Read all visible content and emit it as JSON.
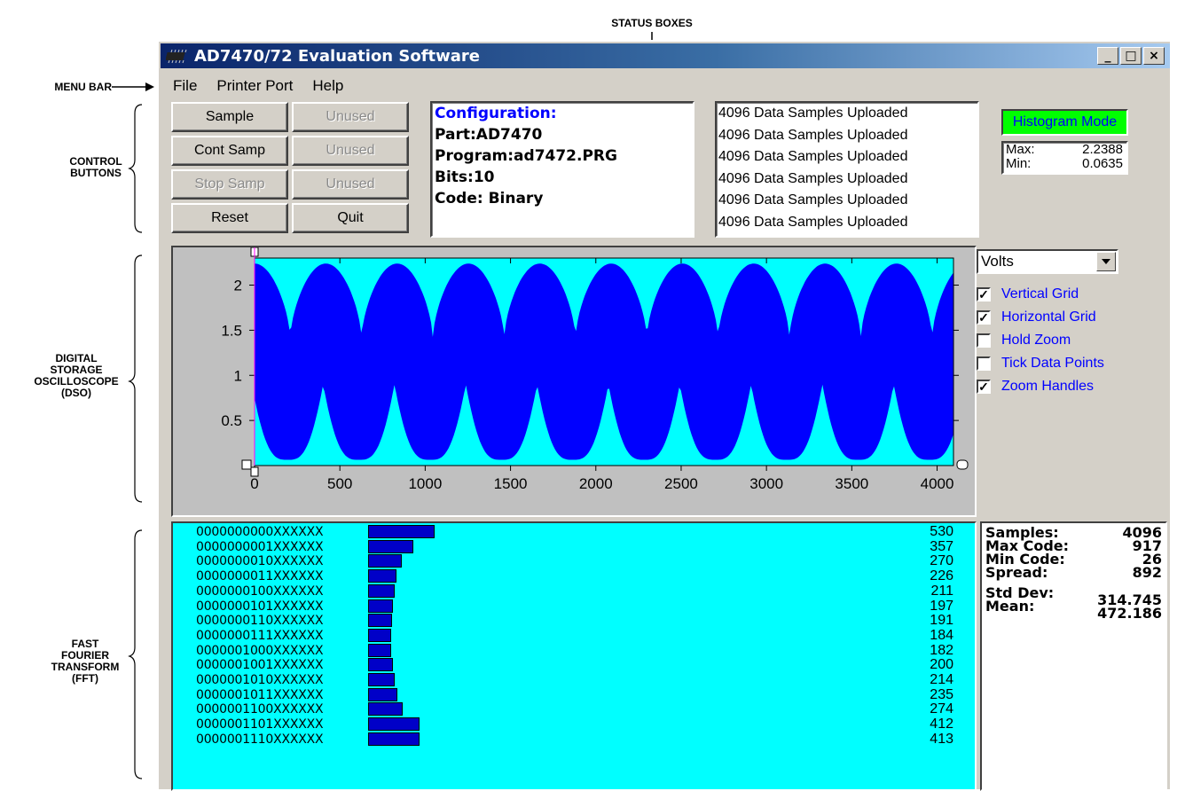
{
  "annotations": {
    "status_boxes": "STATUS BOXES",
    "menu_bar": "MENU BAR",
    "control_buttons": [
      "CONTROL",
      "BUTTONS"
    ],
    "dso": [
      "DIGITAL",
      "STORAGE",
      "OSCILLOSCOPE",
      "(DSO)"
    ],
    "fft": [
      "FAST",
      "FOURIER",
      "TRANSFORM",
      "(FFT)"
    ]
  },
  "window": {
    "title": "AD7470/72 Evaluation Software",
    "controls": {
      "minimize": "_",
      "maximize": "□",
      "close": "×"
    }
  },
  "menu": [
    "File",
    "Printer Port",
    "Help"
  ],
  "buttons": {
    "sample": "Sample",
    "cont_samp": "Cont Samp",
    "stop_samp": "Stop Samp",
    "reset": "Reset",
    "unused1": "Unused",
    "unused2": "Unused",
    "unused3": "Unused",
    "quit": "Quit"
  },
  "configuration": {
    "heading": "Configuration:",
    "part": "Part:AD7470",
    "program": "Program:ad7472.PRG",
    "bits": "Bits:10",
    "code": "Code: Binary"
  },
  "status_lines": [
    "4096 Data Samples Uploaded",
    "4096 Data Samples Uploaded",
    "4096 Data Samples Uploaded",
    "4096 Data Samples Uploaded",
    "4096 Data Samples Uploaded",
    "4096 Data Samples Uploaded"
  ],
  "mode": "Histogram Mode",
  "minmax": {
    "max_label": "Max:",
    "max_value": "2.2388",
    "min_label": "Min:",
    "min_value": "0.0635"
  },
  "units_select": "Volts",
  "checkboxes": [
    {
      "label": "Vertical Grid",
      "checked": true
    },
    {
      "label": "Horizontal Grid",
      "checked": true
    },
    {
      "label": "Hold Zoom",
      "checked": false
    },
    {
      "label": "Tick Data Points",
      "checked": false
    },
    {
      "label": "Zoom Handles",
      "checked": true
    }
  ],
  "colors": {
    "plot_bg": "#00ffff",
    "trace": "#0000ff",
    "histogram_bar": "#0000c8",
    "mode_bg": "#00ff00"
  },
  "chart_data": {
    "type": "area",
    "x_ticks": [
      "0",
      "500",
      "1000",
      "1500",
      "2000",
      "2500",
      "3000",
      "3500",
      "4000"
    ],
    "y_ticks": [
      "0.5",
      "1",
      "1.5",
      "2"
    ],
    "xlim": [
      0,
      4096
    ],
    "ylim": [
      0,
      2.3
    ],
    "upper_envelope": {
      "max": 2.2388,
      "min": 1.4,
      "cycles": 9.8
    },
    "lower_envelope": {
      "max": 0.9,
      "min": 0.0635,
      "cycles": 9.8
    },
    "grid": false
  },
  "histogram": {
    "rows": [
      {
        "code": "0000000000XXXXXX",
        "count": 530
      },
      {
        "code": "0000000001XXXXXX",
        "count": 357
      },
      {
        "code": "0000000010XXXXXX",
        "count": 270
      },
      {
        "code": "0000000011XXXXXX",
        "count": 226
      },
      {
        "code": "0000000100XXXXXX",
        "count": 211
      },
      {
        "code": "0000000101XXXXXX",
        "count": 197
      },
      {
        "code": "0000000110XXXXXX",
        "count": 191
      },
      {
        "code": "0000000111XXXXXX",
        "count": 184
      },
      {
        "code": "0000001000XXXXXX",
        "count": 182
      },
      {
        "code": "0000001001XXXXXX",
        "count": 200
      },
      {
        "code": "0000001010XXXXXX",
        "count": 214
      },
      {
        "code": "0000001011XXXXXX",
        "count": 235
      },
      {
        "code": "0000001100XXXXXX",
        "count": 274
      },
      {
        "code": "0000001101XXXXXX",
        "count": 412
      },
      {
        "code": "0000001110XXXXXX",
        "count": 413
      }
    ]
  },
  "stats": [
    {
      "label": "Samples:",
      "value": "4096"
    },
    {
      "label": "Max Code:",
      "value": "917"
    },
    {
      "label": "Min Code:",
      "value": "26"
    },
    {
      "label": "Spread:",
      "value": "892"
    },
    {
      "label": "Std Dev:",
      "value": "314.745"
    },
    {
      "label": "Mean:",
      "value": "472.186"
    }
  ]
}
